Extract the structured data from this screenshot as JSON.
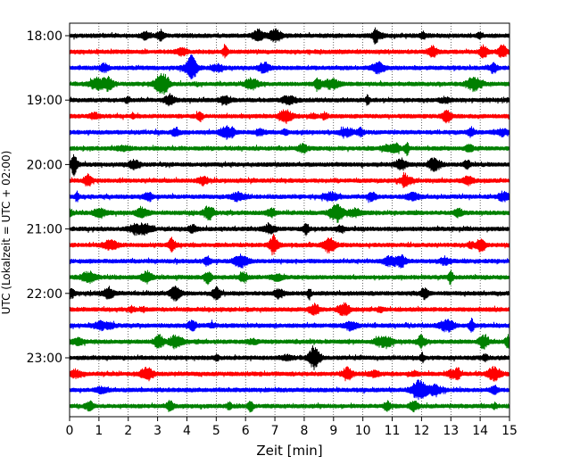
{
  "chart_data": {
    "type": "line",
    "title": "",
    "xlabel": "Zeit  [min]",
    "ylabel": "UTC (Lokalzeit = UTC + 02:00)",
    "xlim": [
      0,
      15
    ],
    "x_ticks": [
      "0",
      "1",
      "2",
      "3",
      "4",
      "5",
      "6",
      "7",
      "8",
      "9",
      "10",
      "11",
      "12",
      "13",
      "14",
      "15"
    ],
    "y_ticks": [
      "18:00",
      "19:00",
      "20:00",
      "21:00",
      "22:00",
      "23:00"
    ],
    "trace_interval_min": 15,
    "grid": "vertical dotted",
    "colors": [
      "#000000",
      "#ff0000",
      "#0000ff",
      "#008000"
    ],
    "traces": [
      {
        "start": "18:00",
        "color": "#000000"
      },
      {
        "start": "18:15",
        "color": "#ff0000"
      },
      {
        "start": "18:30",
        "color": "#0000ff"
      },
      {
        "start": "18:45",
        "color": "#008000"
      },
      {
        "start": "19:00",
        "color": "#000000"
      },
      {
        "start": "19:15",
        "color": "#ff0000"
      },
      {
        "start": "19:30",
        "color": "#0000ff"
      },
      {
        "start": "19:45",
        "color": "#008000"
      },
      {
        "start": "20:00",
        "color": "#000000"
      },
      {
        "start": "20:15",
        "color": "#ff0000"
      },
      {
        "start": "20:30",
        "color": "#0000ff"
      },
      {
        "start": "20:45",
        "color": "#008000"
      },
      {
        "start": "21:00",
        "color": "#000000"
      },
      {
        "start": "21:15",
        "color": "#ff0000"
      },
      {
        "start": "21:30",
        "color": "#0000ff"
      },
      {
        "start": "21:45",
        "color": "#008000"
      },
      {
        "start": "22:00",
        "color": "#000000"
      },
      {
        "start": "22:15",
        "color": "#ff0000"
      },
      {
        "start": "22:30",
        "color": "#0000ff"
      },
      {
        "start": "22:45",
        "color": "#008000"
      },
      {
        "start": "23:00",
        "color": "#000000"
      },
      {
        "start": "23:15",
        "color": "#ff0000"
      },
      {
        "start": "23:30",
        "color": "#0000ff"
      },
      {
        "start": "23:45",
        "color": "#008000"
      }
    ]
  }
}
